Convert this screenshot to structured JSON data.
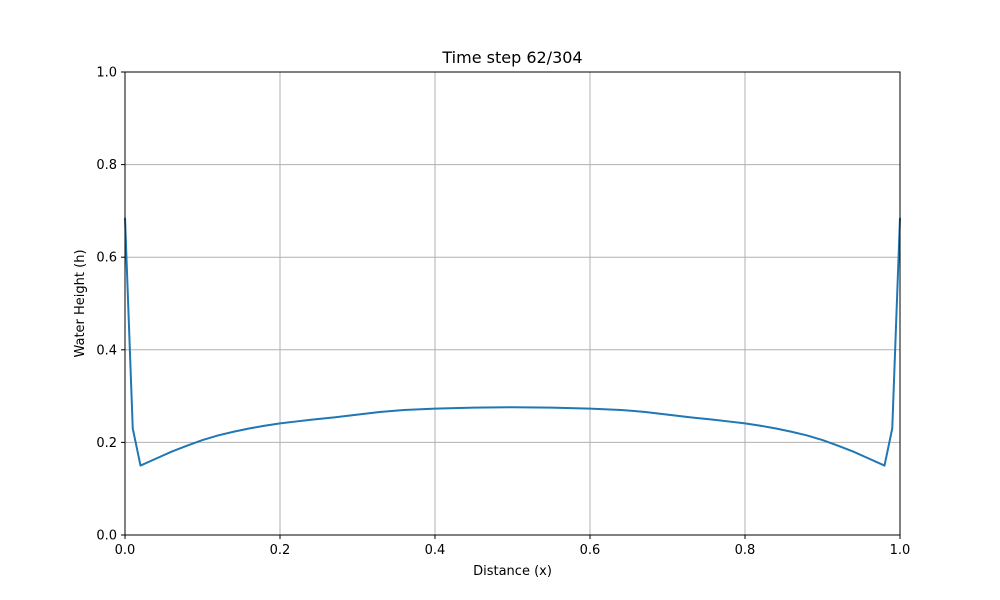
{
  "chart_data": {
    "type": "line",
    "title": "Time step 62/304",
    "xlabel": "Distance (x)",
    "ylabel": "Water Height (h)",
    "xlim": [
      0.0,
      1.0
    ],
    "ylim": [
      0.0,
      1.0
    ],
    "xticks": [
      "0.0",
      "0.2",
      "0.4",
      "0.6",
      "0.8",
      "1.0"
    ],
    "yticks": [
      "0.0",
      "0.2",
      "0.4",
      "0.6",
      "0.8",
      "1.0"
    ],
    "grid": true,
    "line_color": "#1f77b4",
    "series": [
      {
        "x": [
          0.0,
          0.01,
          0.02,
          0.04,
          0.06,
          0.08,
          0.1,
          0.12,
          0.14,
          0.16,
          0.18,
          0.2,
          0.22,
          0.24,
          0.27,
          0.3,
          0.33,
          0.36,
          0.4,
          0.45,
          0.5,
          0.55,
          0.6,
          0.64,
          0.67,
          0.7,
          0.73,
          0.76,
          0.78,
          0.8,
          0.82,
          0.84,
          0.86,
          0.88,
          0.9,
          0.92,
          0.94,
          0.96,
          0.98,
          0.99,
          1.0
        ],
        "y": [
          0.685,
          0.23,
          0.15,
          0.165,
          0.18,
          0.193,
          0.205,
          0.215,
          0.223,
          0.23,
          0.236,
          0.241,
          0.245,
          0.249,
          0.254,
          0.26,
          0.266,
          0.27,
          0.273,
          0.275,
          0.276,
          0.275,
          0.273,
          0.27,
          0.266,
          0.26,
          0.254,
          0.249,
          0.245,
          0.241,
          0.236,
          0.23,
          0.223,
          0.215,
          0.205,
          0.193,
          0.18,
          0.165,
          0.15,
          0.23,
          0.685
        ]
      }
    ]
  }
}
